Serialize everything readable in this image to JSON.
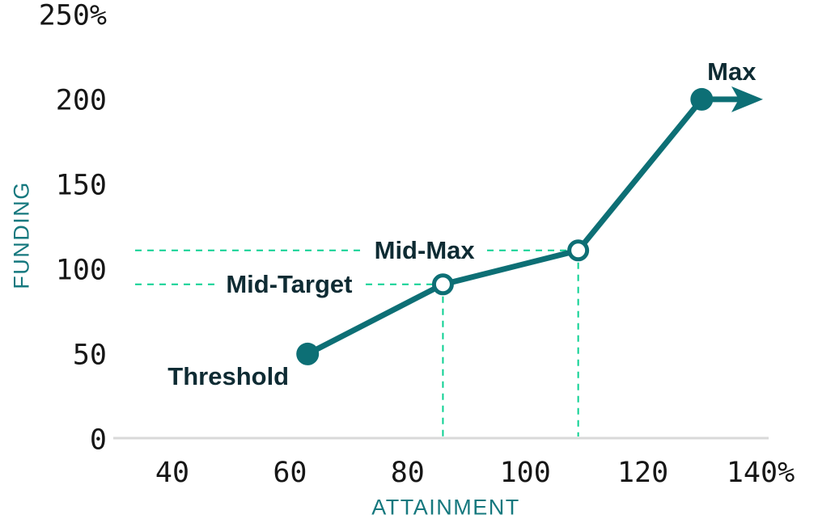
{
  "chart_data": {
    "type": "line",
    "xlabel": "ATTAINMENT",
    "ylabel": "FUNDING",
    "xlim": [
      30,
      148
    ],
    "ylim": [
      0,
      250
    ],
    "grid": false,
    "legend": "none",
    "x_ticks": [
      {
        "value": 40,
        "label": "40"
      },
      {
        "value": 60,
        "label": "60"
      },
      {
        "value": 80,
        "label": "80"
      },
      {
        "value": 100,
        "label": "100"
      },
      {
        "value": 120,
        "label": "120"
      },
      {
        "value": 140,
        "label": "140%"
      }
    ],
    "y_ticks": [
      {
        "value": 0,
        "label": "0"
      },
      {
        "value": 50,
        "label": "50"
      },
      {
        "value": 100,
        "label": "100"
      },
      {
        "value": 150,
        "label": "150"
      },
      {
        "value": 200,
        "label": "200"
      },
      {
        "value": 250,
        "label": "250%"
      }
    ],
    "series": [
      {
        "name": "payout-curve",
        "points": [
          {
            "label": "Threshold",
            "x": 63,
            "y": 51,
            "marker": "filled",
            "label_placement": "below-left",
            "guides": []
          },
          {
            "label": "Mid-Target",
            "x": 86,
            "y": 92,
            "marker": "open",
            "label_placement": "line-left",
            "guides": [
              "horizontal",
              "vertical"
            ]
          },
          {
            "label": "Mid-Max",
            "x": 109,
            "y": 112,
            "marker": "open",
            "label_placement": "line-left",
            "guides": [
              "horizontal",
              "vertical"
            ]
          },
          {
            "label": "Max",
            "x": 130,
            "y": 201,
            "marker": "filled",
            "label_placement": "above-right",
            "guides": [],
            "arrow_right": true
          }
        ]
      }
    ],
    "colors": {
      "line": "#0d6f75",
      "marker_fill": "#0d6f75",
      "open_marker_fill": "#ffffff",
      "point_label_text": "#0e2b33",
      "guide_dashed": "#0bd092",
      "axis_line": "#d9d9d9",
      "tick_text": "#161616",
      "axis_title_text": "#15787e"
    }
  }
}
